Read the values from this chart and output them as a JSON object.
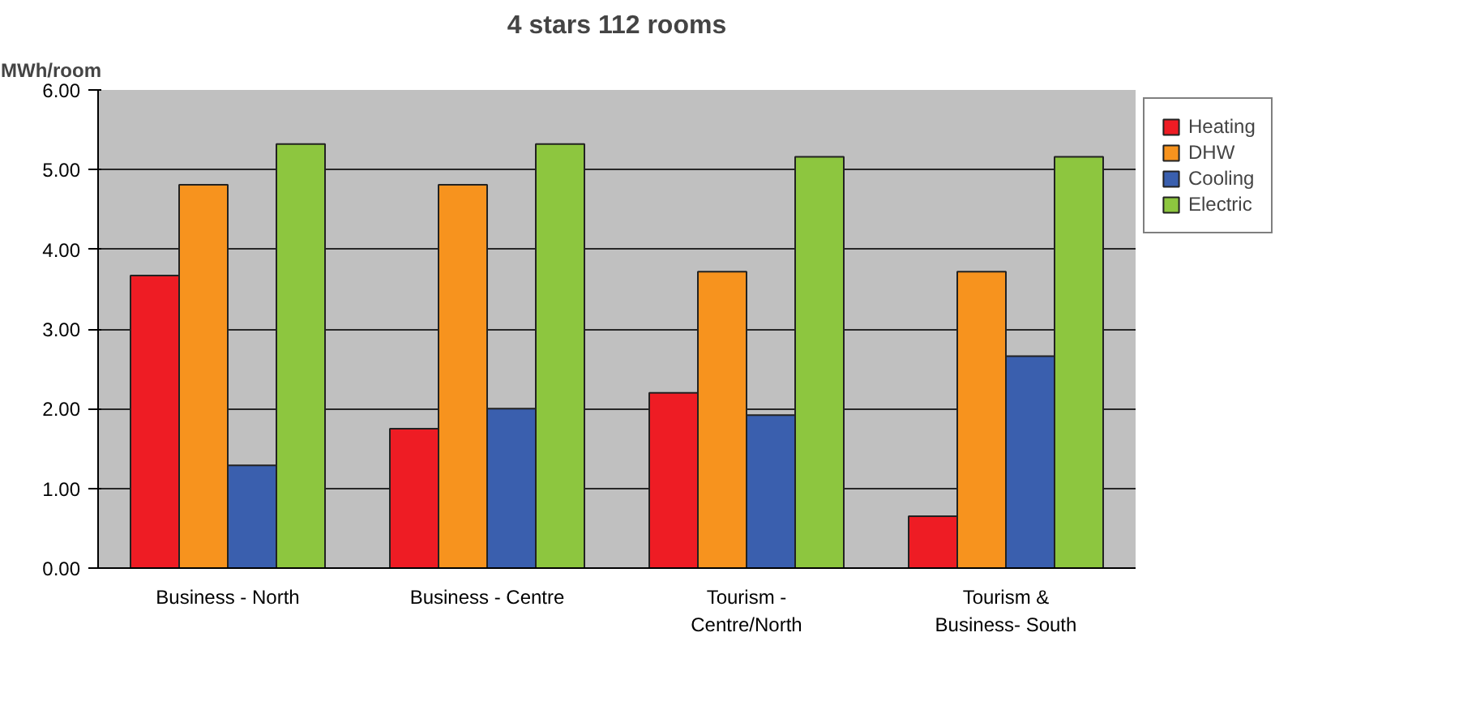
{
  "chart_data": {
    "type": "bar",
    "title": "4 stars 112 rooms",
    "ylabel": "MWh/room",
    "categories": [
      "Business - North",
      "Business - Centre",
      "Tourism - Centre/North",
      "Tourism & Business- South"
    ],
    "series": [
      {
        "name": "Heating",
        "color": "#ee1c24",
        "values": [
          3.67,
          1.75,
          2.2,
          0.65
        ]
      },
      {
        "name": "DHW",
        "color": "#f7931e",
        "values": [
          4.81,
          4.81,
          3.72,
          3.72
        ]
      },
      {
        "name": "Cooling",
        "color": "#3a5fae",
        "values": [
          1.29,
          2.0,
          1.92,
          2.66
        ]
      },
      {
        "name": "Electric",
        "color": "#8dc63f",
        "values": [
          5.32,
          5.32,
          5.16,
          5.16
        ]
      }
    ],
    "ylim": [
      0,
      6
    ],
    "yticks": [
      {
        "value": 0,
        "label": "0.00"
      },
      {
        "value": 1,
        "label": "1.00"
      },
      {
        "value": 2,
        "label": "2.00"
      },
      {
        "value": 3,
        "label": "3.00"
      },
      {
        "value": 4,
        "label": "4.00"
      },
      {
        "value": 5,
        "label": "5.00"
      },
      {
        "value": 6,
        "label": "6.00"
      }
    ],
    "grid": "y",
    "legend": "right"
  }
}
